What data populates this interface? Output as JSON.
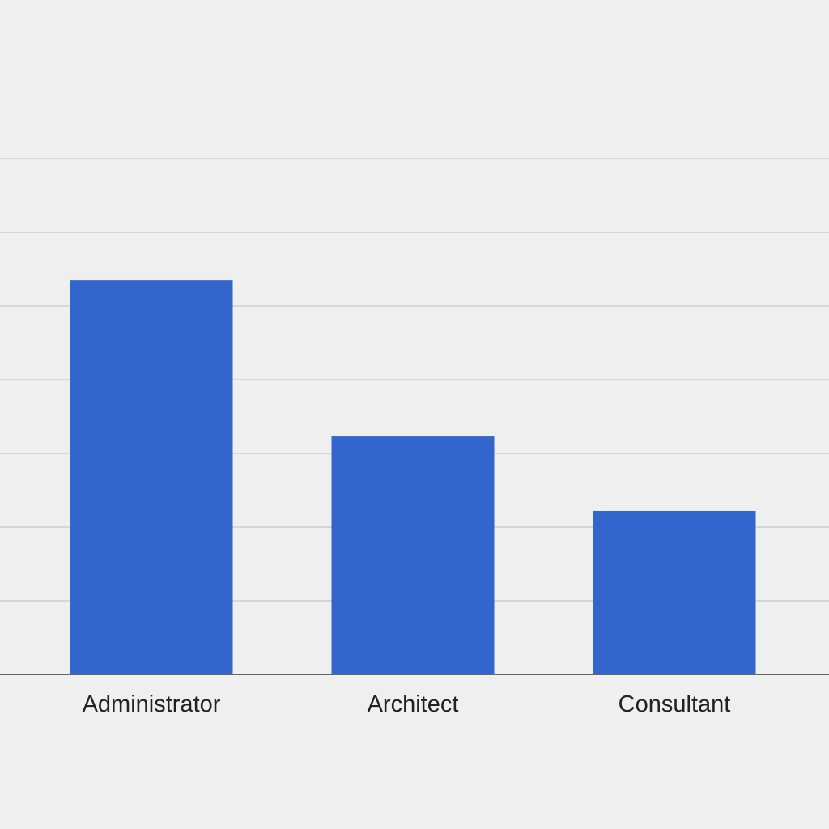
{
  "chart_data": {
    "type": "bar",
    "categories": [
      "Administrator",
      "Architect",
      "Consultant"
    ],
    "values": [
      5.35,
      3.23,
      2.22
    ],
    "ylim": [
      0,
      7
    ],
    "grid": true,
    "legend": "none",
    "title": "",
    "xlabel": "",
    "ylabel": "",
    "colors": {
      "bar": "#3266cc",
      "background": "#efefef",
      "gridline": "#d6d6d6",
      "baseline": "#666666",
      "label": "#222222"
    }
  }
}
